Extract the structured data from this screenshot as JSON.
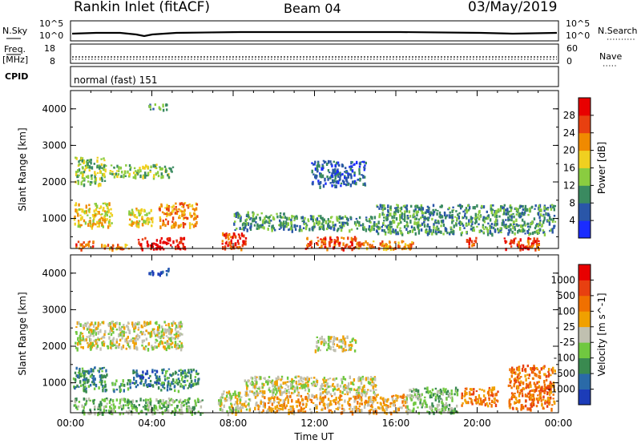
{
  "header": {
    "site": "Rankin Inlet (fitACF)",
    "beam": "Beam 04",
    "date": "03/May/2019"
  },
  "strip": {
    "nsky_label": "N.Sky",
    "nsky_ticks": [
      "10^5",
      "10^0"
    ],
    "nsearch_label": "N.Search",
    "nsearch_ticks": [
      "10^5",
      "10^0"
    ],
    "freq_label_1": "Freq.",
    "freq_label_2": "[MHz]",
    "freq_ticks": [
      "18",
      "8"
    ],
    "nave_label": "Nave",
    "nave_ticks": [
      "60",
      "0"
    ],
    "cpid_label": "CPID",
    "cpid_value": "normal (fast) 151"
  },
  "chart_data": [
    {
      "type": "heatmap",
      "title": "Power",
      "xlabel": "Time UT",
      "ylabel": "Slant Range [km]",
      "xlim": [
        0,
        24
      ],
      "ylim": [
        180,
        4500
      ],
      "x_ticks": [
        "00:00",
        "04:00",
        "08:00",
        "12:00",
        "16:00",
        "20:00",
        "00:00"
      ],
      "y_ticks": [
        "1000",
        "2000",
        "3000",
        "4000"
      ],
      "colorbar_label": "Power [dB]",
      "colorbar_ticks": [
        "4",
        "8",
        "12",
        "16",
        "20",
        "24",
        "28"
      ],
      "colorbar_colors": [
        "#1a2cff",
        "#2a56a8",
        "#3a8a60",
        "#8acc40",
        "#f0d020",
        "#f08a00",
        "#e84010",
        "#e80000"
      ],
      "regions": [
        {
          "x": [
            0.2,
            1.1
          ],
          "y": [
            180,
            400
          ],
          "level": 6
        },
        {
          "x": [
            1.4,
            3.0
          ],
          "y": [
            180,
            320
          ],
          "level": 5
        },
        {
          "x": [
            3.3,
            5.6
          ],
          "y": [
            180,
            500
          ],
          "level": 7
        },
        {
          "x": [
            7.4,
            8.6
          ],
          "y": [
            180,
            650
          ],
          "level": 6
        },
        {
          "x": [
            11.5,
            14.0
          ],
          "y": [
            200,
            520
          ],
          "level": 6
        },
        {
          "x": [
            14.0,
            17.0
          ],
          "y": [
            200,
            420
          ],
          "level": 5
        },
        {
          "x": [
            19.4,
            20.0
          ],
          "y": [
            250,
            500
          ],
          "level": 6
        },
        {
          "x": [
            21.3,
            23.0
          ],
          "y": [
            180,
            500
          ],
          "level": 6
        },
        {
          "x": [
            0.1,
            2.0
          ],
          "y": [
            800,
            1450
          ],
          "level": 4
        },
        {
          "x": [
            2.8,
            4.0
          ],
          "y": [
            800,
            1300
          ],
          "level": 4
        },
        {
          "x": [
            4.3,
            6.2
          ],
          "y": [
            800,
            1450
          ],
          "level": 5
        },
        {
          "x": [
            0.2,
            1.7
          ],
          "y": [
            1950,
            2700
          ],
          "level": 3
        },
        {
          "x": [
            1.9,
            5.0
          ],
          "y": [
            2150,
            2500
          ],
          "level": 3
        },
        {
          "x": [
            8.0,
            10.5
          ],
          "y": [
            700,
            1200
          ],
          "level": 2
        },
        {
          "x": [
            10.5,
            15.0
          ],
          "y": [
            700,
            1100
          ],
          "level": 2
        },
        {
          "x": [
            15.0,
            23.8
          ],
          "y": [
            600,
            1400
          ],
          "level": 2
        },
        {
          "x": [
            11.8,
            14.5
          ],
          "y": [
            1900,
            2600
          ],
          "level": 1
        },
        {
          "x": [
            3.8,
            4.8
          ],
          "y": [
            4000,
            4150
          ],
          "level": 2
        }
      ]
    },
    {
      "type": "heatmap",
      "title": "Velocity",
      "xlabel": "Time UT",
      "ylabel": "Slant Range [km]",
      "xlim": [
        0,
        24
      ],
      "ylim": [
        180,
        4500
      ],
      "x_ticks": [
        "00:00",
        "04:00",
        "08:00",
        "12:00",
        "16:00",
        "20:00",
        "00:00"
      ],
      "y_ticks": [
        "1000",
        "2000",
        "3000",
        "4000"
      ],
      "colorbar_label": "Velocity [m s^-1]",
      "colorbar_ticks": [
        "1000",
        "500",
        "100",
        "25",
        "-25",
        "-100",
        "-500",
        "-1000"
      ],
      "colorbar_colors": [
        "#1c3cb8",
        "#2a6aa8",
        "#3a8a50",
        "#70c840",
        "#c0c0b0",
        "#f0a000",
        "#f07000",
        "#e84010",
        "#e80000"
      ],
      "regions": [
        {
          "x": [
            0.1,
            6.5
          ],
          "y": [
            180,
            600
          ],
          "level": 3
        },
        {
          "x": [
            7.2,
            8.8
          ],
          "y": [
            180,
            800
          ],
          "level": 4
        },
        {
          "x": [
            9.0,
            16.5
          ],
          "y": [
            200,
            700
          ],
          "level": 5
        },
        {
          "x": [
            16.5,
            19.0
          ],
          "y": [
            200,
            900
          ],
          "level": 3
        },
        {
          "x": [
            19.2,
            21.0
          ],
          "y": [
            400,
            900
          ],
          "level": 6
        },
        {
          "x": [
            21.5,
            23.8
          ],
          "y": [
            300,
            1500
          ],
          "level": 6
        },
        {
          "x": [
            0.1,
            1.8
          ],
          "y": [
            800,
            1450
          ],
          "level": 2
        },
        {
          "x": [
            2.0,
            3.0
          ],
          "y": [
            800,
            1100
          ],
          "level": 2
        },
        {
          "x": [
            3.0,
            4.4
          ],
          "y": [
            900,
            1400
          ],
          "level": 1
        },
        {
          "x": [
            4.4,
            6.3
          ],
          "y": [
            800,
            1400
          ],
          "level": 2
        },
        {
          "x": [
            0.2,
            5.5
          ],
          "y": [
            1950,
            2700
          ],
          "level": 4
        },
        {
          "x": [
            8.5,
            15.0
          ],
          "y": [
            700,
            1200
          ],
          "level": 4
        },
        {
          "x": [
            12.0,
            14.0
          ],
          "y": [
            1900,
            2300
          ],
          "level": 4
        },
        {
          "x": [
            3.8,
            4.8
          ],
          "y": [
            4000,
            4150
          ],
          "level": 0
        }
      ]
    }
  ]
}
